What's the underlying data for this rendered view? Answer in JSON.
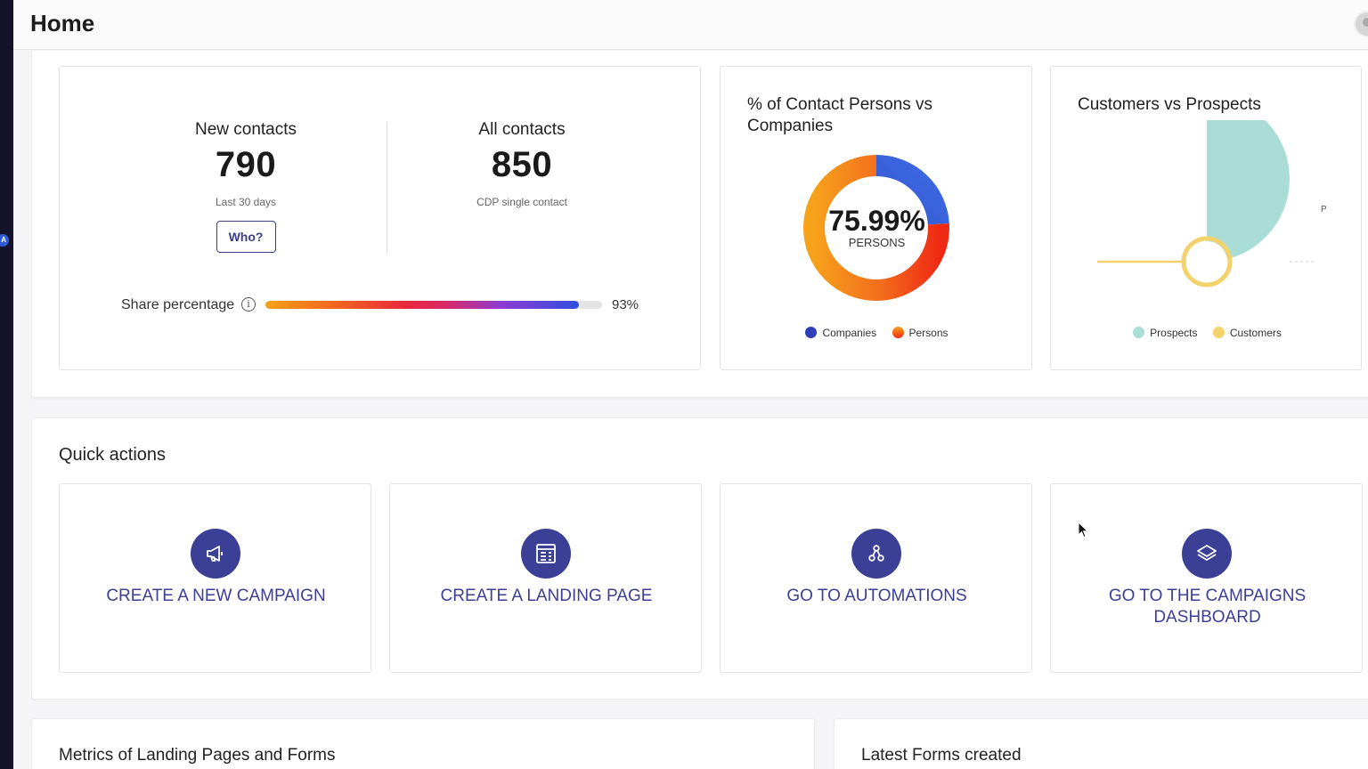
{
  "header": {
    "title": "Home"
  },
  "sidebar": {
    "badge": "A"
  },
  "contacts": {
    "new_label": "New contacts",
    "new_value": "790",
    "new_sub": "Last 30 days",
    "who_button": "Who?",
    "all_label": "All contacts",
    "all_value": "850",
    "all_sub": "CDP single contact",
    "share_label": "Share percentage",
    "share_info": "i",
    "share_value": "93%",
    "share_fraction": 0.93
  },
  "persons_chart": {
    "title": "% of Contact Persons vs Companies",
    "center_value": "75.99%",
    "center_label": "PERSONS",
    "legend": [
      {
        "label": "Companies",
        "color": "#2f3fb8"
      },
      {
        "label": "Persons",
        "color": "#f26b1d"
      }
    ]
  },
  "cvp_chart": {
    "title": "Customers vs Prospects",
    "axis_letter": "P",
    "legend": [
      {
        "label": "Prospects",
        "color": "#a9ddd6"
      },
      {
        "label": "Customers",
        "color": "#f3d26b"
      }
    ]
  },
  "chart_data": [
    {
      "type": "pie",
      "title": "% of Contact Persons vs Companies",
      "labels": [
        "Companies",
        "Persons"
      ],
      "values": [
        24.01,
        75.99
      ],
      "colors": [
        "#2f3fb8",
        "#f26b1d"
      ]
    },
    {
      "type": "pie",
      "title": "Customers vs Prospects",
      "labels": [
        "Prospects",
        "Customers"
      ],
      "colors": [
        "#a9ddd6",
        "#f3d26b"
      ]
    }
  ],
  "quick_actions": {
    "title": "Quick actions",
    "items": [
      {
        "label": "CREATE A NEW CAMPAIGN",
        "icon": "megaphone-icon"
      },
      {
        "label": "CREATE A LANDING PAGE",
        "icon": "page-layout-icon"
      },
      {
        "label": "GO TO AUTOMATIONS",
        "icon": "workflow-icon"
      },
      {
        "label": "GO TO THE CAMPAIGNS DASHBOARD",
        "icon": "layers-icon"
      }
    ]
  },
  "metrics": {
    "title": "Metrics of Landing Pages and Forms"
  },
  "latest_forms": {
    "title": "Latest Forms created"
  }
}
